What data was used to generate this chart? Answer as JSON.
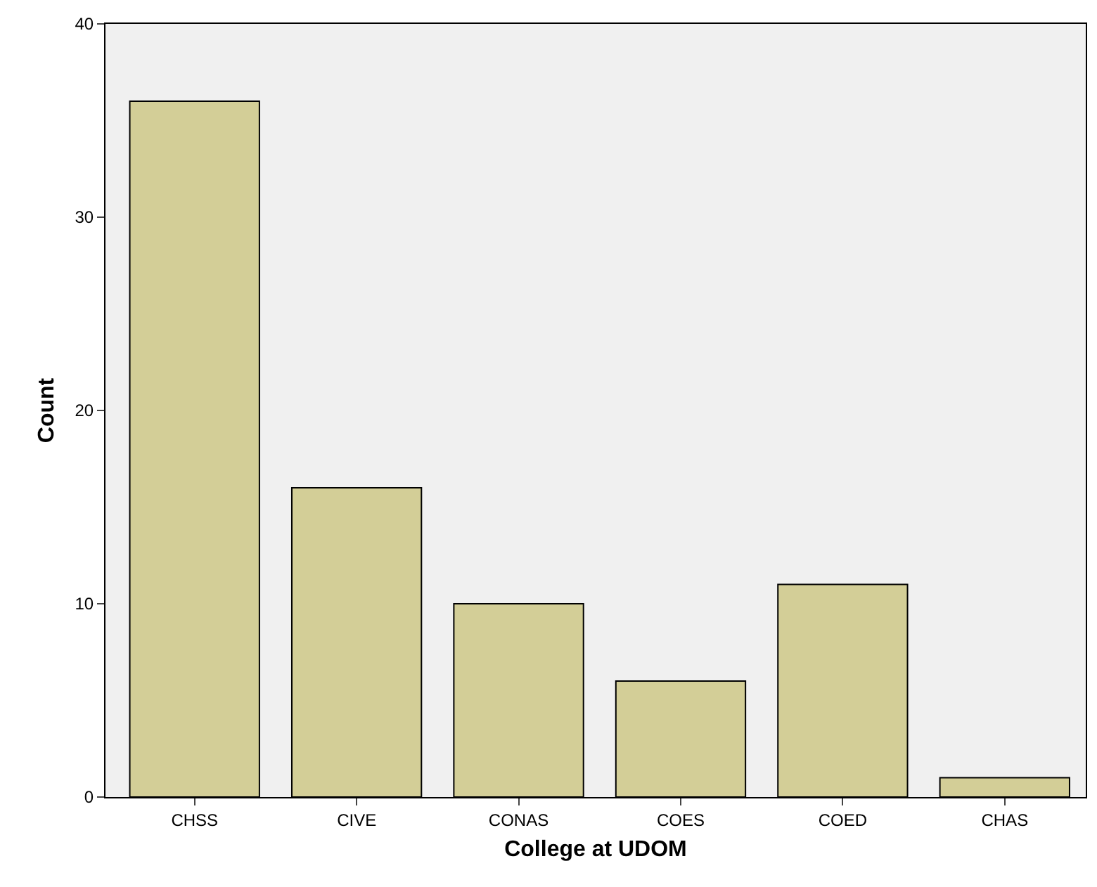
{
  "chart_data": {
    "type": "bar",
    "xlabel": "College at UDOM",
    "ylabel": "Count",
    "categories": [
      "CHSS",
      "CIVE",
      "CONAS",
      "COES",
      "COED",
      "CHAS"
    ],
    "values": [
      36,
      16,
      10,
      6,
      11,
      1
    ],
    "color": "#d3ce97",
    "ylim": [
      0,
      40
    ],
    "yticks": [
      0,
      10,
      20,
      30,
      40
    ],
    "grid": false,
    "legend": false
  }
}
